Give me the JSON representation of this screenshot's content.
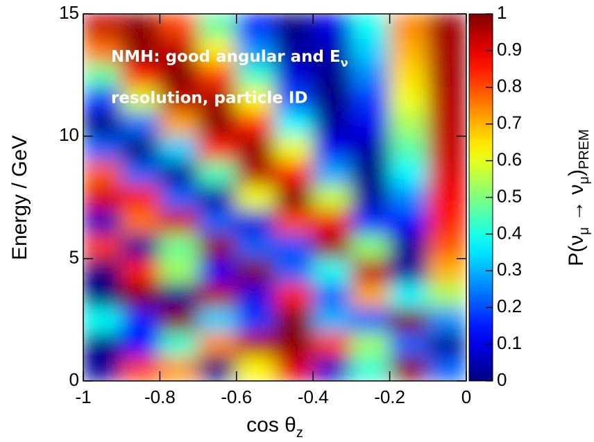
{
  "chart_data": {
    "type": "heatmap",
    "colormap": "jet",
    "xlabel_parts": [
      "cos θ",
      "z"
    ],
    "ylabel": "Energy / GeV",
    "annotation_line1_parts": [
      "NMH: good angular and E",
      "ν"
    ],
    "annotation_line2": "resolution, particle ID",
    "x": [
      -0.95,
      -0.85,
      -0.75,
      -0.65,
      -0.55,
      -0.45,
      -0.35,
      -0.25,
      -0.15,
      -0.05
    ],
    "y": [
      0.5,
      1.5,
      2.5,
      3.5,
      4.5,
      5.5,
      6.5,
      7.5,
      8.5,
      9.5,
      10.5,
      11.5,
      12.5,
      13.5,
      14.5
    ],
    "z": [
      [
        0.03,
        0.82,
        0.73,
        0.0,
        0.63,
        0.9,
        0.07,
        0.42,
        0.99,
        0.22
      ],
      [
        0.0,
        0.13,
        0.42,
        0.74,
        0.95,
        0.99,
        0.82,
        0.53,
        0.22,
        0.03
      ],
      [
        0.38,
        0.15,
        0.99,
        0.33,
        0.18,
        1.0,
        0.3,
        0.22,
        1.0,
        0.26
      ],
      [
        0.0,
        1.0,
        0.02,
        0.95,
        0.1,
        0.85,
        0.22,
        0.71,
        0.37,
        0.54
      ],
      [
        0.0,
        0.85,
        0.53,
        0.11,
        1.0,
        0.22,
        0.39,
        0.94,
        0.03,
        0.7
      ],
      [
        0.82,
        0.03,
        0.48,
        0.98,
        0.22,
        0.2,
        0.97,
        0.51,
        0.02,
        0.79
      ],
      [
        0.06,
        0.76,
        0.92,
        0.22,
        0.09,
        0.8,
        0.89,
        0.17,
        0.13,
        0.85
      ],
      [
        0.91,
        0.86,
        0.22,
        0.04,
        0.61,
        1.0,
        0.57,
        0.03,
        0.26,
        0.88
      ],
      [
        0.79,
        0.22,
        0.02,
        0.45,
        0.95,
        0.86,
        0.29,
        0.0,
        0.37,
        0.91
      ],
      [
        0.22,
        0.0,
        0.33,
        0.84,
        0.98,
        0.61,
        0.11,
        0.04,
        0.46,
        0.93
      ],
      [
        0.0,
        0.23,
        0.71,
        0.99,
        0.84,
        0.37,
        0.03,
        0.11,
        0.54,
        0.94
      ],
      [
        0.17,
        0.58,
        0.94,
        0.96,
        0.63,
        0.2,
        0.0,
        0.18,
        0.61,
        0.95
      ],
      [
        0.47,
        0.85,
        1.0,
        0.82,
        0.43,
        0.09,
        0.01,
        0.26,
        0.66,
        0.96
      ],
      [
        0.76,
        0.98,
        0.94,
        0.64,
        0.27,
        0.03,
        0.05,
        0.33,
        0.7,
        0.96
      ],
      [
        0.93,
        0.99,
        0.81,
        0.47,
        0.15,
        0.0,
        0.1,
        0.39,
        0.74,
        0.97
      ]
    ],
    "xlim": [
      -1,
      0
    ],
    "ylim": [
      0,
      15
    ],
    "xticks": [
      -1,
      -0.8,
      -0.6,
      -0.4,
      -0.2,
      0
    ],
    "yticks": [
      0,
      5,
      10,
      15
    ],
    "colorbar": {
      "lim": [
        0,
        1
      ],
      "ticks": [
        0,
        0.1,
        0.2,
        0.3,
        0.4,
        0.5,
        0.6,
        0.7,
        0.8,
        0.9,
        1
      ],
      "label_parts": [
        "P(ν",
        "μ",
        " → ν",
        "μ",
        ")",
        "PREM"
      ]
    }
  }
}
